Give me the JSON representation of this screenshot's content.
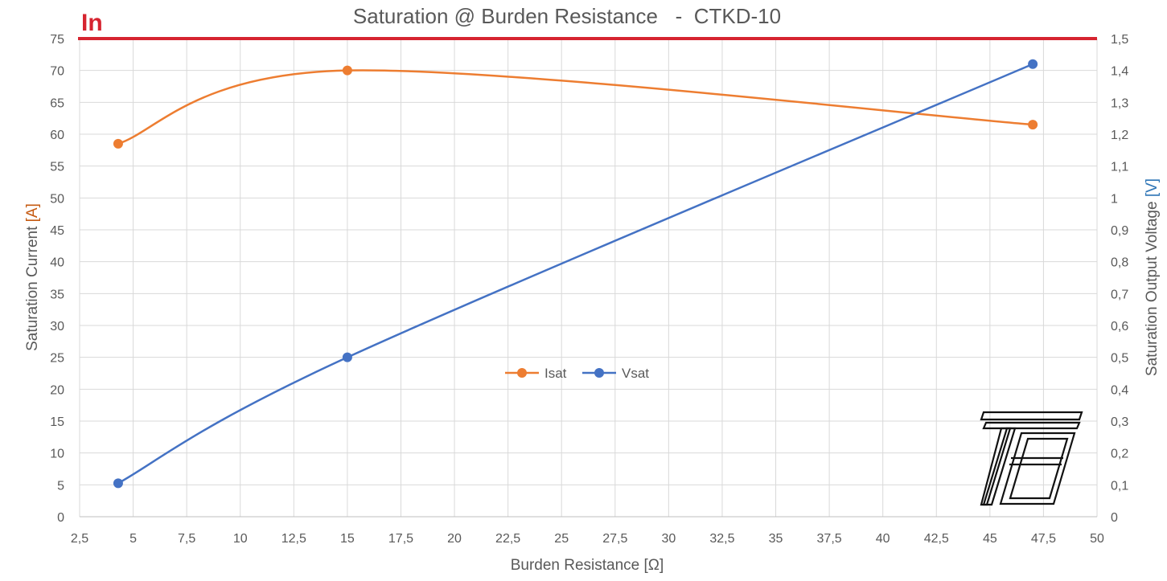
{
  "chart_data": {
    "type": "line",
    "title": "Saturation @ Burden Resistance   -  CTKD-10",
    "xlabel": "Burden Resistance [Ω]",
    "ylabel_left": {
      "prefix": "Saturation Current ",
      "unit": "[A]"
    },
    "ylabel_right": {
      "prefix": "Saturation Output Voltage ",
      "unit": "[V]"
    },
    "xlim": [
      2.5,
      50
    ],
    "ylim_left": [
      0,
      75
    ],
    "ylim_right": [
      0,
      1.5
    ],
    "x_ticks": [
      "2,5",
      "5",
      "7,5",
      "10",
      "12,5",
      "15",
      "17,5",
      "20",
      "22,5",
      "25",
      "27,5",
      "30",
      "32,5",
      "35",
      "37,5",
      "40",
      "42,5",
      "45",
      "47,5",
      "50"
    ],
    "y_left_ticks": [
      "0",
      "5",
      "10",
      "15",
      "20",
      "25",
      "30",
      "35",
      "40",
      "45",
      "50",
      "55",
      "60",
      "65",
      "70",
      "75"
    ],
    "y_right_ticks": [
      "0",
      "0,1",
      "0,2",
      "0,3",
      "0,4",
      "0,5",
      "0,6",
      "0,7",
      "0,8",
      "0,9",
      "1",
      "1,1",
      "1,2",
      "1,3",
      "1,4",
      "1,5"
    ],
    "grid": true,
    "legend_position": "center",
    "series": [
      {
        "name": "Isat",
        "axis": "left",
        "color": "#ED7D31",
        "x": [
          4.3,
          15,
          47
        ],
        "values": [
          58.5,
          70,
          61.5
        ],
        "smooth": true
      },
      {
        "name": "Vsat",
        "axis": "right",
        "color": "#4472C4",
        "x": [
          4.3,
          15,
          47
        ],
        "values": [
          0.105,
          0.5,
          1.42
        ],
        "smooth": true
      }
    ],
    "reference_line": {
      "label": "In",
      "value_left": 75,
      "color": "#D62430"
    },
    "colors": {
      "grid": "#D9D9D9",
      "text": "#595959",
      "left_unit": "#C55A11",
      "right_unit": "#2E75B6"
    }
  },
  "logo": {
    "name": "TB-logo-icon"
  }
}
